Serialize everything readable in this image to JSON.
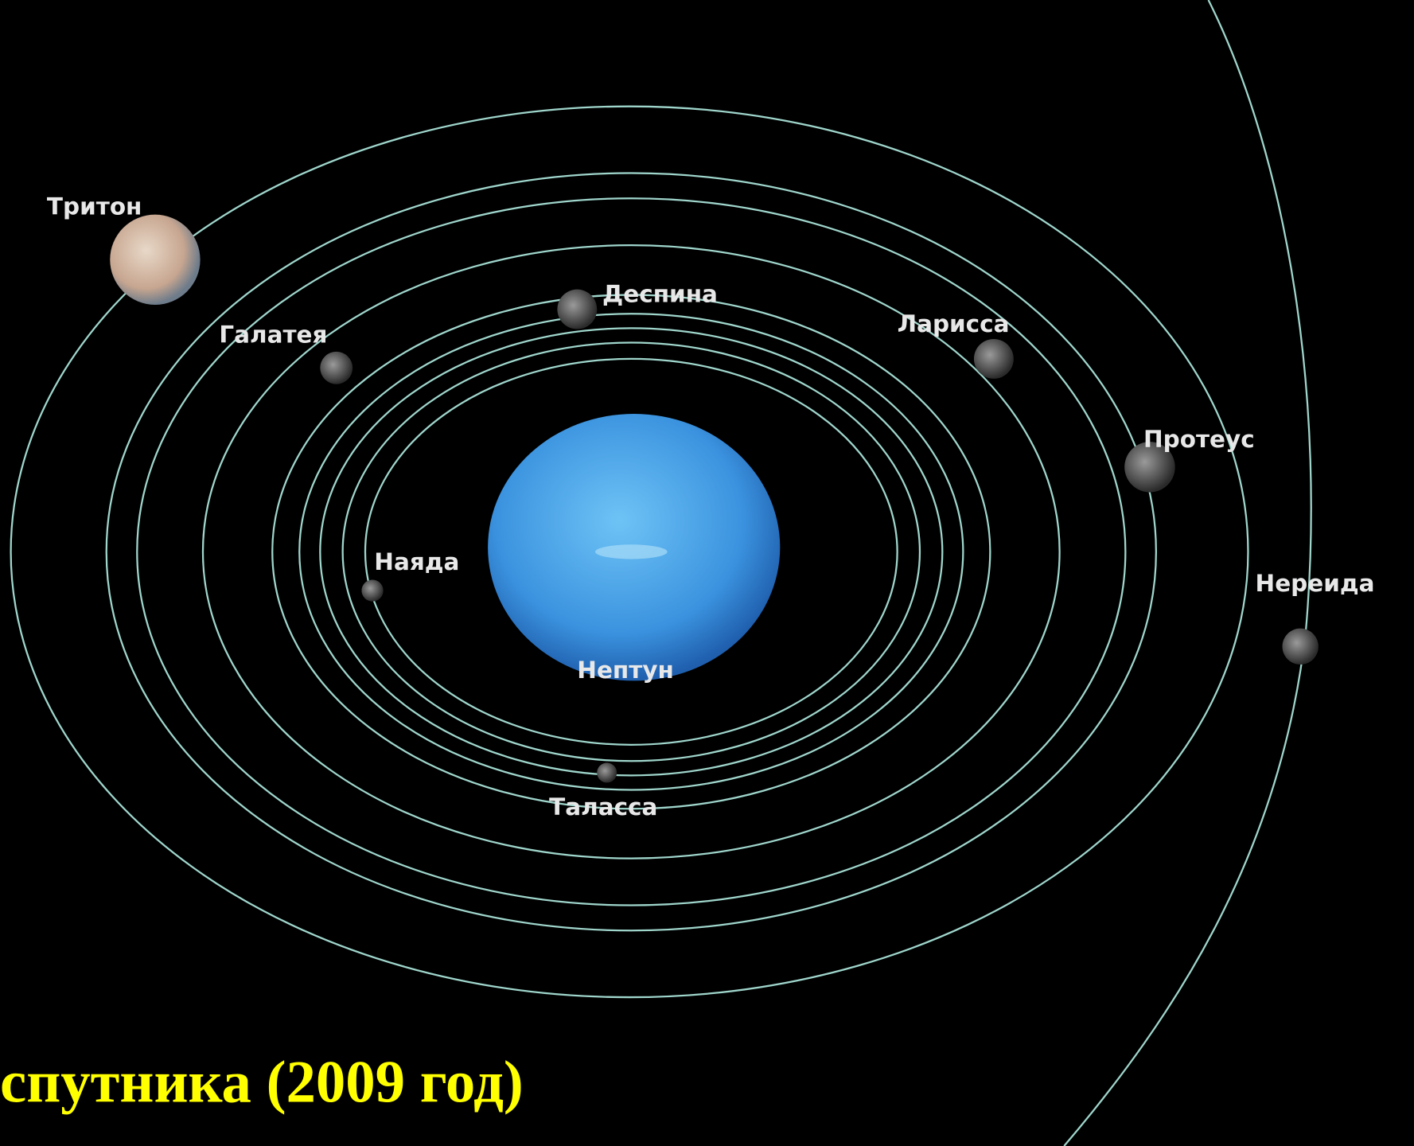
{
  "moons": [
    {
      "label": "Тритон"
    },
    {
      "label": "Деспина"
    },
    {
      "label": "Галатея"
    },
    {
      "label": "Ларисса"
    },
    {
      "label": "Протеус"
    },
    {
      "label": "Наяда"
    },
    {
      "label": "Нереида"
    },
    {
      "label": "Таласса"
    }
  ],
  "planet": {
    "label": "Нептун"
  },
  "caption": "спутника (2009 год)"
}
